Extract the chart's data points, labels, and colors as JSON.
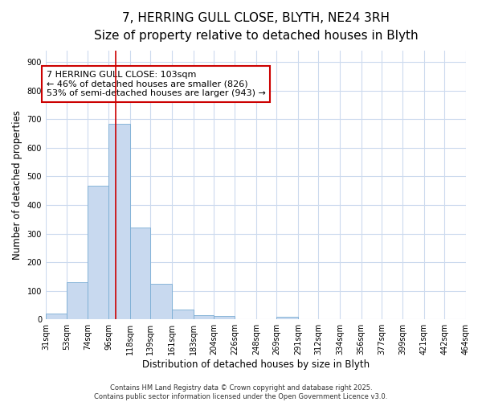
{
  "title": "7, HERRING GULL CLOSE, BLYTH, NE24 3RH",
  "subtitle": "Size of property relative to detached houses in Blyth",
  "xlabel": "Distribution of detached houses by size in Blyth",
  "ylabel": "Number of detached properties",
  "bar_color": "#c8d9ef",
  "bar_edge_color": "#7aadd4",
  "background_color": "#ffffff",
  "plot_bg_color": "#ffffff",
  "grid_color": "#ccdaee",
  "bins": [
    31,
    53,
    74,
    96,
    118,
    139,
    161,
    183,
    204,
    226,
    248,
    269,
    291,
    312,
    334,
    356,
    377,
    399,
    421,
    442,
    464
  ],
  "values": [
    20,
    130,
    467,
    685,
    320,
    125,
    35,
    15,
    12,
    0,
    0,
    10,
    0,
    0,
    0,
    0,
    0,
    0,
    0,
    0
  ],
  "red_line_x": 103,
  "annotation_text": "7 HERRING GULL CLOSE: 103sqm\n← 46% of detached houses are smaller (826)\n53% of semi-detached houses are larger (943) →",
  "annotation_box_color": "#ffffff",
  "annotation_box_edge_color": "#cc0000",
  "ylim_max": 940,
  "yticks": [
    0,
    100,
    200,
    300,
    400,
    500,
    600,
    700,
    800,
    900
  ],
  "tick_labels": [
    "31sqm",
    "53sqm",
    "74sqm",
    "96sqm",
    "118sqm",
    "139sqm",
    "161sqm",
    "183sqm",
    "204sqm",
    "226sqm",
    "248sqm",
    "269sqm",
    "291sqm",
    "312sqm",
    "334sqm",
    "356sqm",
    "377sqm",
    "399sqm",
    "421sqm",
    "442sqm",
    "464sqm"
  ],
  "footer_text": "Contains HM Land Registry data © Crown copyright and database right 2025.\nContains public sector information licensed under the Open Government Licence v3.0.",
  "title_fontsize": 11,
  "subtitle_fontsize": 9.5,
  "axis_label_fontsize": 8.5,
  "tick_fontsize": 7,
  "annotation_fontsize": 8,
  "footer_fontsize": 6
}
